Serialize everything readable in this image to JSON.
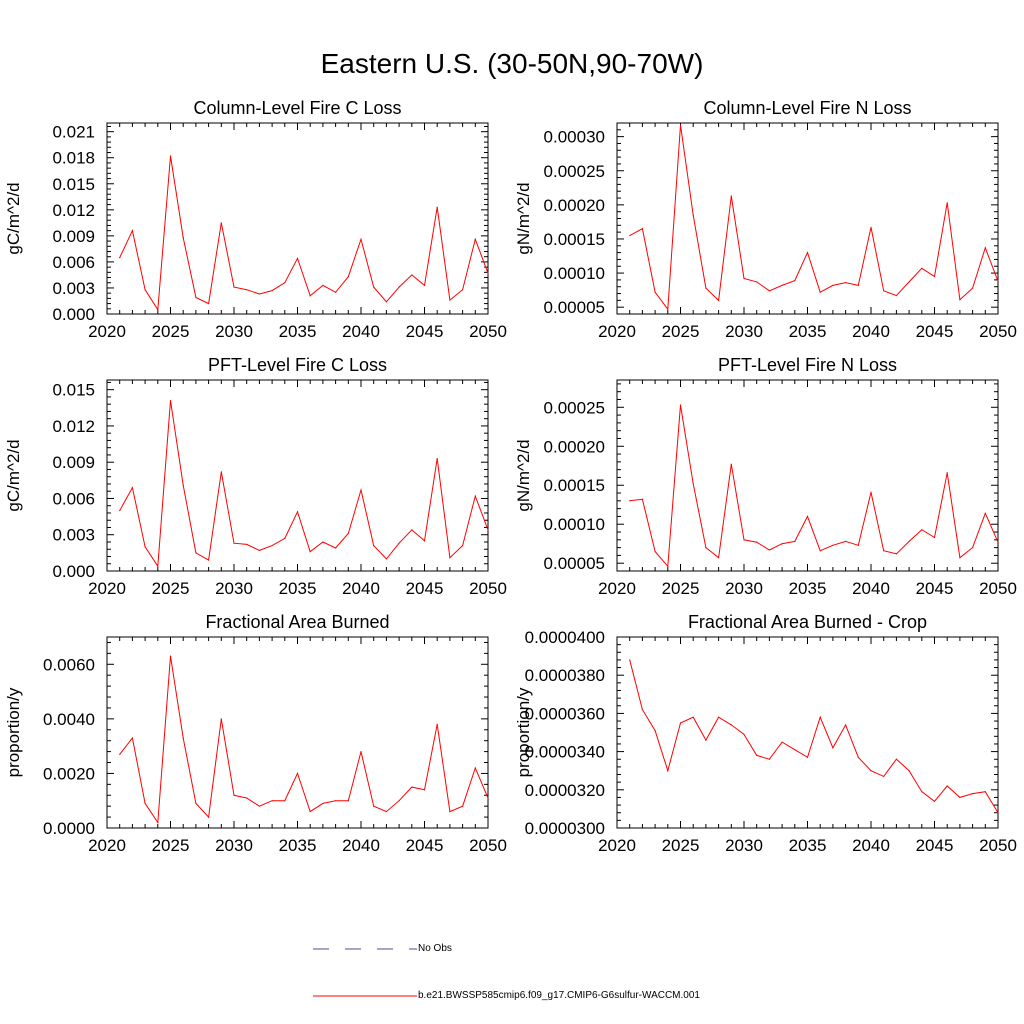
{
  "figure": {
    "title": "Eastern U.S. (30-50N,90-70W)"
  },
  "legend": {
    "entries": [
      {
        "label": "No Obs",
        "color": "#4a4aa8",
        "style": "dashed"
      },
      {
        "label": "b.e21.BWSSP585cmip6.f09_g17.CMIP6-G6sulfur-WACCM.001",
        "color": "#ff0000",
        "style": "solid"
      }
    ]
  },
  "chart_data": [
    {
      "type": "line",
      "title": "Column-Level Fire C Loss",
      "ylabel": "gC/m^2/d",
      "xlim": [
        2020,
        2050
      ],
      "ylim": [
        0,
        0.022
      ],
      "xticks": [
        2020,
        2025,
        2030,
        2035,
        2040,
        2045,
        2050
      ],
      "xtick_labels": [
        "2020",
        "2025",
        "2030",
        "2035",
        "2040",
        "2045",
        "2050"
      ],
      "yticks": [
        0,
        0.003,
        0.006,
        0.009,
        0.012,
        0.015,
        0.018,
        0.021
      ],
      "ytick_labels": [
        "0.000",
        "0.003",
        "0.006",
        "0.009",
        "0.012",
        "0.015",
        "0.018",
        "0.021"
      ],
      "x": [
        2021,
        2022,
        2023,
        2024,
        2025,
        2026,
        2027,
        2028,
        2029,
        2030,
        2031,
        2032,
        2033,
        2034,
        2035,
        2036,
        2037,
        2038,
        2039,
        2040,
        2041,
        2042,
        2043,
        2044,
        2045,
        2046,
        2047,
        2048,
        2049,
        2050
      ],
      "series": [
        {
          "color": "#ff0000",
          "values": [
            0.0065,
            0.0096,
            0.0028,
            0.0005,
            0.0182,
            0.0088,
            0.0019,
            0.0012,
            0.0105,
            0.0031,
            0.0028,
            0.0023,
            0.0027,
            0.0036,
            0.0064,
            0.0021,
            0.0033,
            0.0025,
            0.0043,
            0.0086,
            0.0031,
            0.0014,
            0.0031,
            0.0045,
            0.0033,
            0.0123,
            0.0016,
            0.0028,
            0.0086,
            0.0047
          ]
        }
      ]
    },
    {
      "type": "line",
      "title": "Column-Level Fire N Loss",
      "ylabel": "gN/m^2/d",
      "xlim": [
        2020,
        2050
      ],
      "ylim": [
        4e-05,
        0.00032
      ],
      "xticks": [
        2020,
        2025,
        2030,
        2035,
        2040,
        2045,
        2050
      ],
      "xtick_labels": [
        "2020",
        "2025",
        "2030",
        "2035",
        "2040",
        "2045",
        "2050"
      ],
      "yticks": [
        5e-05,
        0.0001,
        0.00015,
        0.0002,
        0.00025,
        0.0003
      ],
      "ytick_labels": [
        "0.00005",
        "0.00010",
        "0.00015",
        "0.00020",
        "0.00025",
        "0.00030"
      ],
      "x": [
        2021,
        2022,
        2023,
        2024,
        2025,
        2026,
        2027,
        2028,
        2029,
        2030,
        2031,
        2032,
        2033,
        2034,
        2035,
        2036,
        2037,
        2038,
        2039,
        2040,
        2041,
        2042,
        2043,
        2044,
        2045,
        2046,
        2047,
        2048,
        2049,
        2050
      ],
      "series": [
        {
          "color": "#ff0000",
          "values": [
            0.000155,
            0.000165,
            7.2e-05,
            4.7e-05,
            0.000317,
            0.000185,
            7.8e-05,
            6e-05,
            0.000213,
            9.2e-05,
            8.7e-05,
            7.4e-05,
            8.2e-05,
            8.9e-05,
            0.00013,
            7.2e-05,
            8.2e-05,
            8.6e-05,
            8.2e-05,
            0.000167,
            7.4e-05,
            6.7e-05,
            8.7e-05,
            0.000107,
            9.5e-05,
            0.000203,
            6.1e-05,
            7.8e-05,
            0.000137,
            8.8e-05
          ]
        }
      ]
    },
    {
      "type": "line",
      "title": "PFT-Level Fire C Loss",
      "ylabel": "gC/m^2/d",
      "xlim": [
        2020,
        2050
      ],
      "ylim": [
        0,
        0.0158
      ],
      "xticks": [
        2020,
        2025,
        2030,
        2035,
        2040,
        2045,
        2050
      ],
      "xtick_labels": [
        "2020",
        "2025",
        "2030",
        "2035",
        "2040",
        "2045",
        "2050"
      ],
      "yticks": [
        0,
        0.003,
        0.006,
        0.009,
        0.012,
        0.015
      ],
      "ytick_labels": [
        "0.000",
        "0.003",
        "0.006",
        "0.009",
        "0.012",
        "0.015"
      ],
      "x": [
        2021,
        2022,
        2023,
        2024,
        2025,
        2026,
        2027,
        2028,
        2029,
        2030,
        2031,
        2032,
        2033,
        2034,
        2035,
        2036,
        2037,
        2038,
        2039,
        2040,
        2041,
        2042,
        2043,
        2044,
        2045,
        2046,
        2047,
        2048,
        2049,
        2050
      ],
      "series": [
        {
          "color": "#ff0000",
          "values": [
            0.005,
            0.0069,
            0.002,
            0.0004,
            0.0141,
            0.0071,
            0.0015,
            0.0009,
            0.0082,
            0.0023,
            0.0022,
            0.0017,
            0.0021,
            0.0027,
            0.0049,
            0.0016,
            0.0024,
            0.0019,
            0.0031,
            0.0067,
            0.0021,
            0.001,
            0.0023,
            0.0034,
            0.0025,
            0.0093,
            0.0011,
            0.0021,
            0.0062,
            0.0034
          ]
        }
      ]
    },
    {
      "type": "line",
      "title": "PFT-Level Fire N Loss",
      "ylabel": "gN/m^2/d",
      "xlim": [
        2020,
        2050
      ],
      "ylim": [
        4e-05,
        0.000285
      ],
      "xticks": [
        2020,
        2025,
        2030,
        2035,
        2040,
        2045,
        2050
      ],
      "xtick_labels": [
        "2020",
        "2025",
        "2030",
        "2035",
        "2040",
        "2045",
        "2050"
      ],
      "yticks": [
        5e-05,
        0.0001,
        0.00015,
        0.0002,
        0.00025
      ],
      "ytick_labels": [
        "0.00005",
        "0.00010",
        "0.00015",
        "0.00020",
        "0.00025"
      ],
      "x": [
        2021,
        2022,
        2023,
        2024,
        2025,
        2026,
        2027,
        2028,
        2029,
        2030,
        2031,
        2032,
        2033,
        2034,
        2035,
        2036,
        2037,
        2038,
        2039,
        2040,
        2041,
        2042,
        2043,
        2044,
        2045,
        2046,
        2047,
        2048,
        2049,
        2050
      ],
      "series": [
        {
          "color": "#ff0000",
          "values": [
            0.00013,
            0.000132,
            6.5e-05,
            4.6e-05,
            0.000253,
            0.000152,
            7e-05,
            5.7e-05,
            0.000177,
            8e-05,
            7.7e-05,
            6.7e-05,
            7.5e-05,
            7.8e-05,
            0.00011,
            6.6e-05,
            7.3e-05,
            7.8e-05,
            7.3e-05,
            0.000141,
            6.6e-05,
            6.2e-05,
            7.8e-05,
            9.3e-05,
            8.3e-05,
            0.000166,
            5.7e-05,
            7e-05,
            0.000114,
            7.7e-05
          ]
        }
      ]
    },
    {
      "type": "line",
      "title": "Fractional Area Burned",
      "ylabel": "proportion/y",
      "xlim": [
        2020,
        2050
      ],
      "ylim": [
        0,
        0.007
      ],
      "xticks": [
        2020,
        2025,
        2030,
        2035,
        2040,
        2045,
        2050
      ],
      "xtick_labels": [
        "2020",
        "2025",
        "2030",
        "2035",
        "2040",
        "2045",
        "2050"
      ],
      "yticks": [
        0,
        0.002,
        0.004,
        0.006
      ],
      "ytick_labels": [
        "0.0000",
        "0.0020",
        "0.0040",
        "0.0060"
      ],
      "x": [
        2021,
        2022,
        2023,
        2024,
        2025,
        2026,
        2027,
        2028,
        2029,
        2030,
        2031,
        2032,
        2033,
        2034,
        2035,
        2036,
        2037,
        2038,
        2039,
        2040,
        2041,
        2042,
        2043,
        2044,
        2045,
        2046,
        2047,
        2048,
        2049,
        2050
      ],
      "series": [
        {
          "color": "#ff0000",
          "values": [
            0.0027,
            0.0033,
            0.0009,
            0.0002,
            0.0063,
            0.0033,
            0.0009,
            0.0004,
            0.004,
            0.0012,
            0.0011,
            0.0008,
            0.001,
            0.001,
            0.002,
            0.0006,
            0.0009,
            0.001,
            0.001,
            0.0028,
            0.0008,
            0.0006,
            0.001,
            0.0015,
            0.0014,
            0.0038,
            0.0006,
            0.0008,
            0.0022,
            0.0011
          ]
        }
      ]
    },
    {
      "type": "line",
      "title": "Fractional Area Burned - Crop",
      "ylabel": "proportion/y",
      "xlim": [
        2020,
        2050
      ],
      "ylim": [
        3e-05,
        4e-05
      ],
      "xticks": [
        2020,
        2025,
        2030,
        2035,
        2040,
        2045,
        2050
      ],
      "xtick_labels": [
        "2020",
        "2025",
        "2030",
        "2035",
        "2040",
        "2045",
        "2050"
      ],
      "yticks": [
        3e-05,
        3.2e-05,
        3.4e-05,
        3.6e-05,
        3.8e-05,
        4e-05
      ],
      "ytick_labels": [
        "0.0000300",
        "0.0000320",
        "0.0000340",
        "0.0000360",
        "0.0000380",
        "0.0000400"
      ],
      "x": [
        2021,
        2022,
        2023,
        2024,
        2025,
        2026,
        2027,
        2028,
        2029,
        2030,
        2031,
        2032,
        2033,
        2034,
        2035,
        2036,
        2037,
        2038,
        2039,
        2040,
        2041,
        2042,
        2043,
        2044,
        2045,
        2046,
        2047,
        2048,
        2049,
        2050
      ],
      "series": [
        {
          "color": "#ff0000",
          "values": [
            3.88e-05,
            3.62e-05,
            3.51e-05,
            3.3e-05,
            3.55e-05,
            3.58e-05,
            3.46e-05,
            3.58e-05,
            3.54e-05,
            3.49e-05,
            3.38e-05,
            3.36e-05,
            3.45e-05,
            3.41e-05,
            3.37e-05,
            3.58e-05,
            3.42e-05,
            3.54e-05,
            3.37e-05,
            3.3e-05,
            3.27e-05,
            3.36e-05,
            3.3e-05,
            3.19e-05,
            3.14e-05,
            3.22e-05,
            3.16e-05,
            3.18e-05,
            3.19e-05,
            3.08e-05
          ]
        }
      ]
    }
  ]
}
